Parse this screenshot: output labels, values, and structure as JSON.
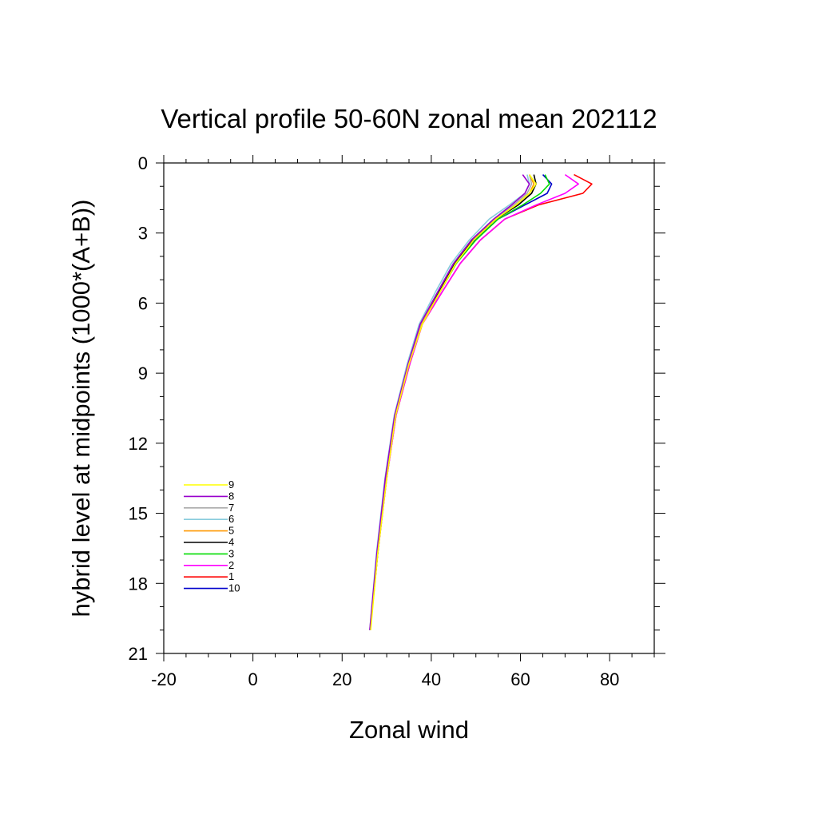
{
  "chart_data": {
    "type": "line",
    "title": "Vertical profile 50-60N zonal mean 202112",
    "xlabel": "Zonal wind",
    "ylabel": "hybrid level at midpoints (1000*(A+B))",
    "xlim": [
      -20,
      90
    ],
    "ylim": [
      21,
      0
    ],
    "y_reversed": true,
    "xticks": [
      -20,
      0,
      20,
      40,
      60,
      80
    ],
    "yticks": [
      0,
      3,
      6,
      9,
      12,
      15,
      18,
      21
    ],
    "grid": false,
    "legend_position": "bottom-left",
    "y": [
      0.5,
      0.9,
      1.3,
      1.8,
      2.4,
      3.3,
      4.3,
      5.5,
      6.9,
      8.6,
      10.8,
      13.5,
      16.7,
      20.0
    ],
    "series": [
      {
        "name": "9",
        "color": "#ffff00",
        "x": [
          62.0,
          63.5,
          62.0,
          59.0,
          54.5,
          49.5,
          45.5,
          42.0,
          38.0,
          35.0,
          32.0,
          30.0,
          28.0,
          26.4
        ]
      },
      {
        "name": "8",
        "color": "#9900cc",
        "x": [
          60.5,
          62.0,
          61.0,
          58.0,
          54.0,
          49.0,
          45.0,
          41.5,
          37.5,
          34.8,
          31.8,
          29.7,
          27.8,
          26.2
        ]
      },
      {
        "name": "7",
        "color": "#aaaaaa",
        "x": [
          62.0,
          62.5,
          61.5,
          58.5,
          54.0,
          49.0,
          45.0,
          41.5,
          37.6,
          34.8,
          31.9,
          29.7,
          27.9,
          26.3
        ]
      },
      {
        "name": "6",
        "color": "#88ccdd",
        "x": [
          61.5,
          62.0,
          61.0,
          57.5,
          53.0,
          48.5,
          44.5,
          41.0,
          37.3,
          34.6,
          31.7,
          29.6,
          27.7,
          26.2
        ]
      },
      {
        "name": "5",
        "color": "#ff9900",
        "x": [
          62.0,
          63.0,
          62.0,
          59.0,
          54.5,
          49.5,
          45.5,
          42.0,
          37.8,
          35.0,
          32.0,
          29.9,
          28.0,
          26.3
        ]
      },
      {
        "name": "4",
        "color": "#000000",
        "x": [
          63.0,
          63.5,
          62.5,
          59.5,
          54.5,
          49.3,
          45.2,
          41.8,
          37.7,
          34.9,
          31.9,
          29.8,
          27.9,
          26.3
        ]
      },
      {
        "name": "3",
        "color": "#00dd00",
        "x": [
          65.5,
          66.5,
          64.5,
          60.5,
          55.0,
          50.0,
          45.6,
          42.0,
          37.8,
          35.0,
          32.0,
          29.9,
          28.0,
          26.3
        ]
      },
      {
        "name": "2",
        "color": "#ff00ff",
        "x": [
          70.0,
          73.0,
          70.0,
          63.5,
          56.5,
          51.0,
          46.5,
          42.5,
          38.0,
          35.2,
          32.1,
          30.0,
          28.0,
          26.3
        ]
      },
      {
        "name": "1",
        "color": "#ff0000",
        "x": [
          72.0,
          76.0,
          74.0,
          64.0,
          56.5,
          51.0,
          46.5,
          42.5,
          38.0,
          35.2,
          32.1,
          30.0,
          28.0,
          26.3
        ]
      },
      {
        "name": "10",
        "color": "#0000cc",
        "x": [
          65.0,
          67.0,
          66.0,
          61.0,
          55.0,
          49.8,
          45.5,
          42.0,
          37.8,
          35.0,
          32.0,
          29.9,
          28.0,
          26.3
        ]
      }
    ]
  }
}
